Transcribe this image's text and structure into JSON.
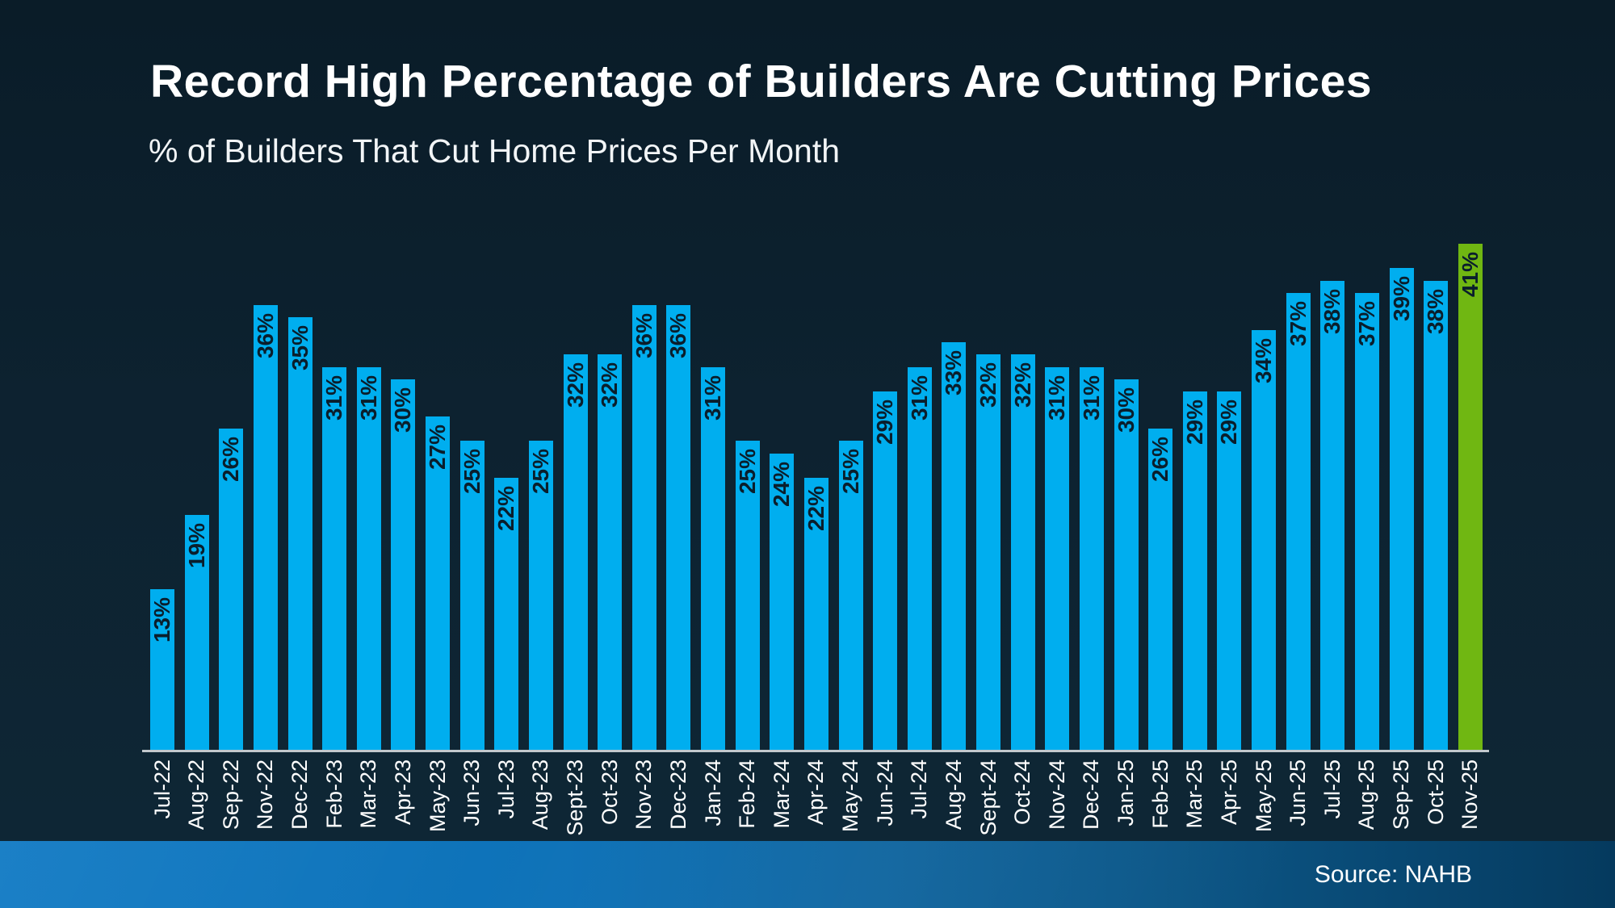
{
  "footer": {
    "source": "Source: NAHB"
  },
  "chart_data": {
    "type": "bar",
    "title": "Record High Percentage of Builders Are Cutting Prices",
    "subtitle": "% of Builders That Cut Home Prices Per Month",
    "unit": "%",
    "ylim": [
      0,
      45
    ],
    "grid": false,
    "legend": false,
    "y_axis_visible": false,
    "x_label_rotation": -90,
    "data_label_rotation": -90,
    "data_label_position": "inside-top",
    "bar_color_default": "#00AEEF",
    "bar_color_highlight": "#70B712",
    "highlight_index": 38,
    "value_label_color": "#0a1e2c",
    "axis_line_color": "#c2c8cd",
    "categories": [
      "Jul-22",
      "Aug-22",
      "Sep-22",
      "Nov-22",
      "Dec-22",
      "Feb-23",
      "Mar-23",
      "Apr-23",
      "May-23",
      "Jun-23",
      "Jul-23",
      "Aug-23",
      "Sept-23",
      "Oct-23",
      "Nov-23",
      "Dec-23",
      "Jan-24",
      "Feb-24",
      "Mar-24",
      "Apr-24",
      "May-24",
      "Jun-24",
      "Jul-24",
      "Aug-24",
      "Sept-24",
      "Oct-24",
      "Nov-24",
      "Dec-24",
      "Jan-25",
      "Feb-25",
      "Mar-25",
      "Apr-25",
      "May-25",
      "Jun-25",
      "Jul-25",
      "Aug-25",
      "Sep-25",
      "Oct-25",
      "Nov-25"
    ],
    "values": [
      13,
      19,
      26,
      36,
      35,
      31,
      31,
      30,
      27,
      25,
      22,
      25,
      32,
      32,
      36,
      36,
      31,
      25,
      24,
      22,
      25,
      29,
      31,
      33,
      32,
      32,
      31,
      31,
      30,
      26,
      29,
      29,
      34,
      37,
      38,
      37,
      39,
      38,
      41
    ],
    "data_labels": [
      "13%",
      "19%",
      "26%",
      "36%",
      "35%",
      "31%",
      "31%",
      "30%",
      "27%",
      "25%",
      "22%",
      "25%",
      "32%",
      "32%",
      "36%",
      "36%",
      "31%",
      "25%",
      "24%",
      "22%",
      "25%",
      "29%",
      "31%",
      "33%",
      "32%",
      "32%",
      "31%",
      "31%",
      "30%",
      "26%",
      "29%",
      "29%",
      "34%",
      "37%",
      "38%",
      "37%",
      "39%",
      "38%",
      "41%"
    ]
  }
}
